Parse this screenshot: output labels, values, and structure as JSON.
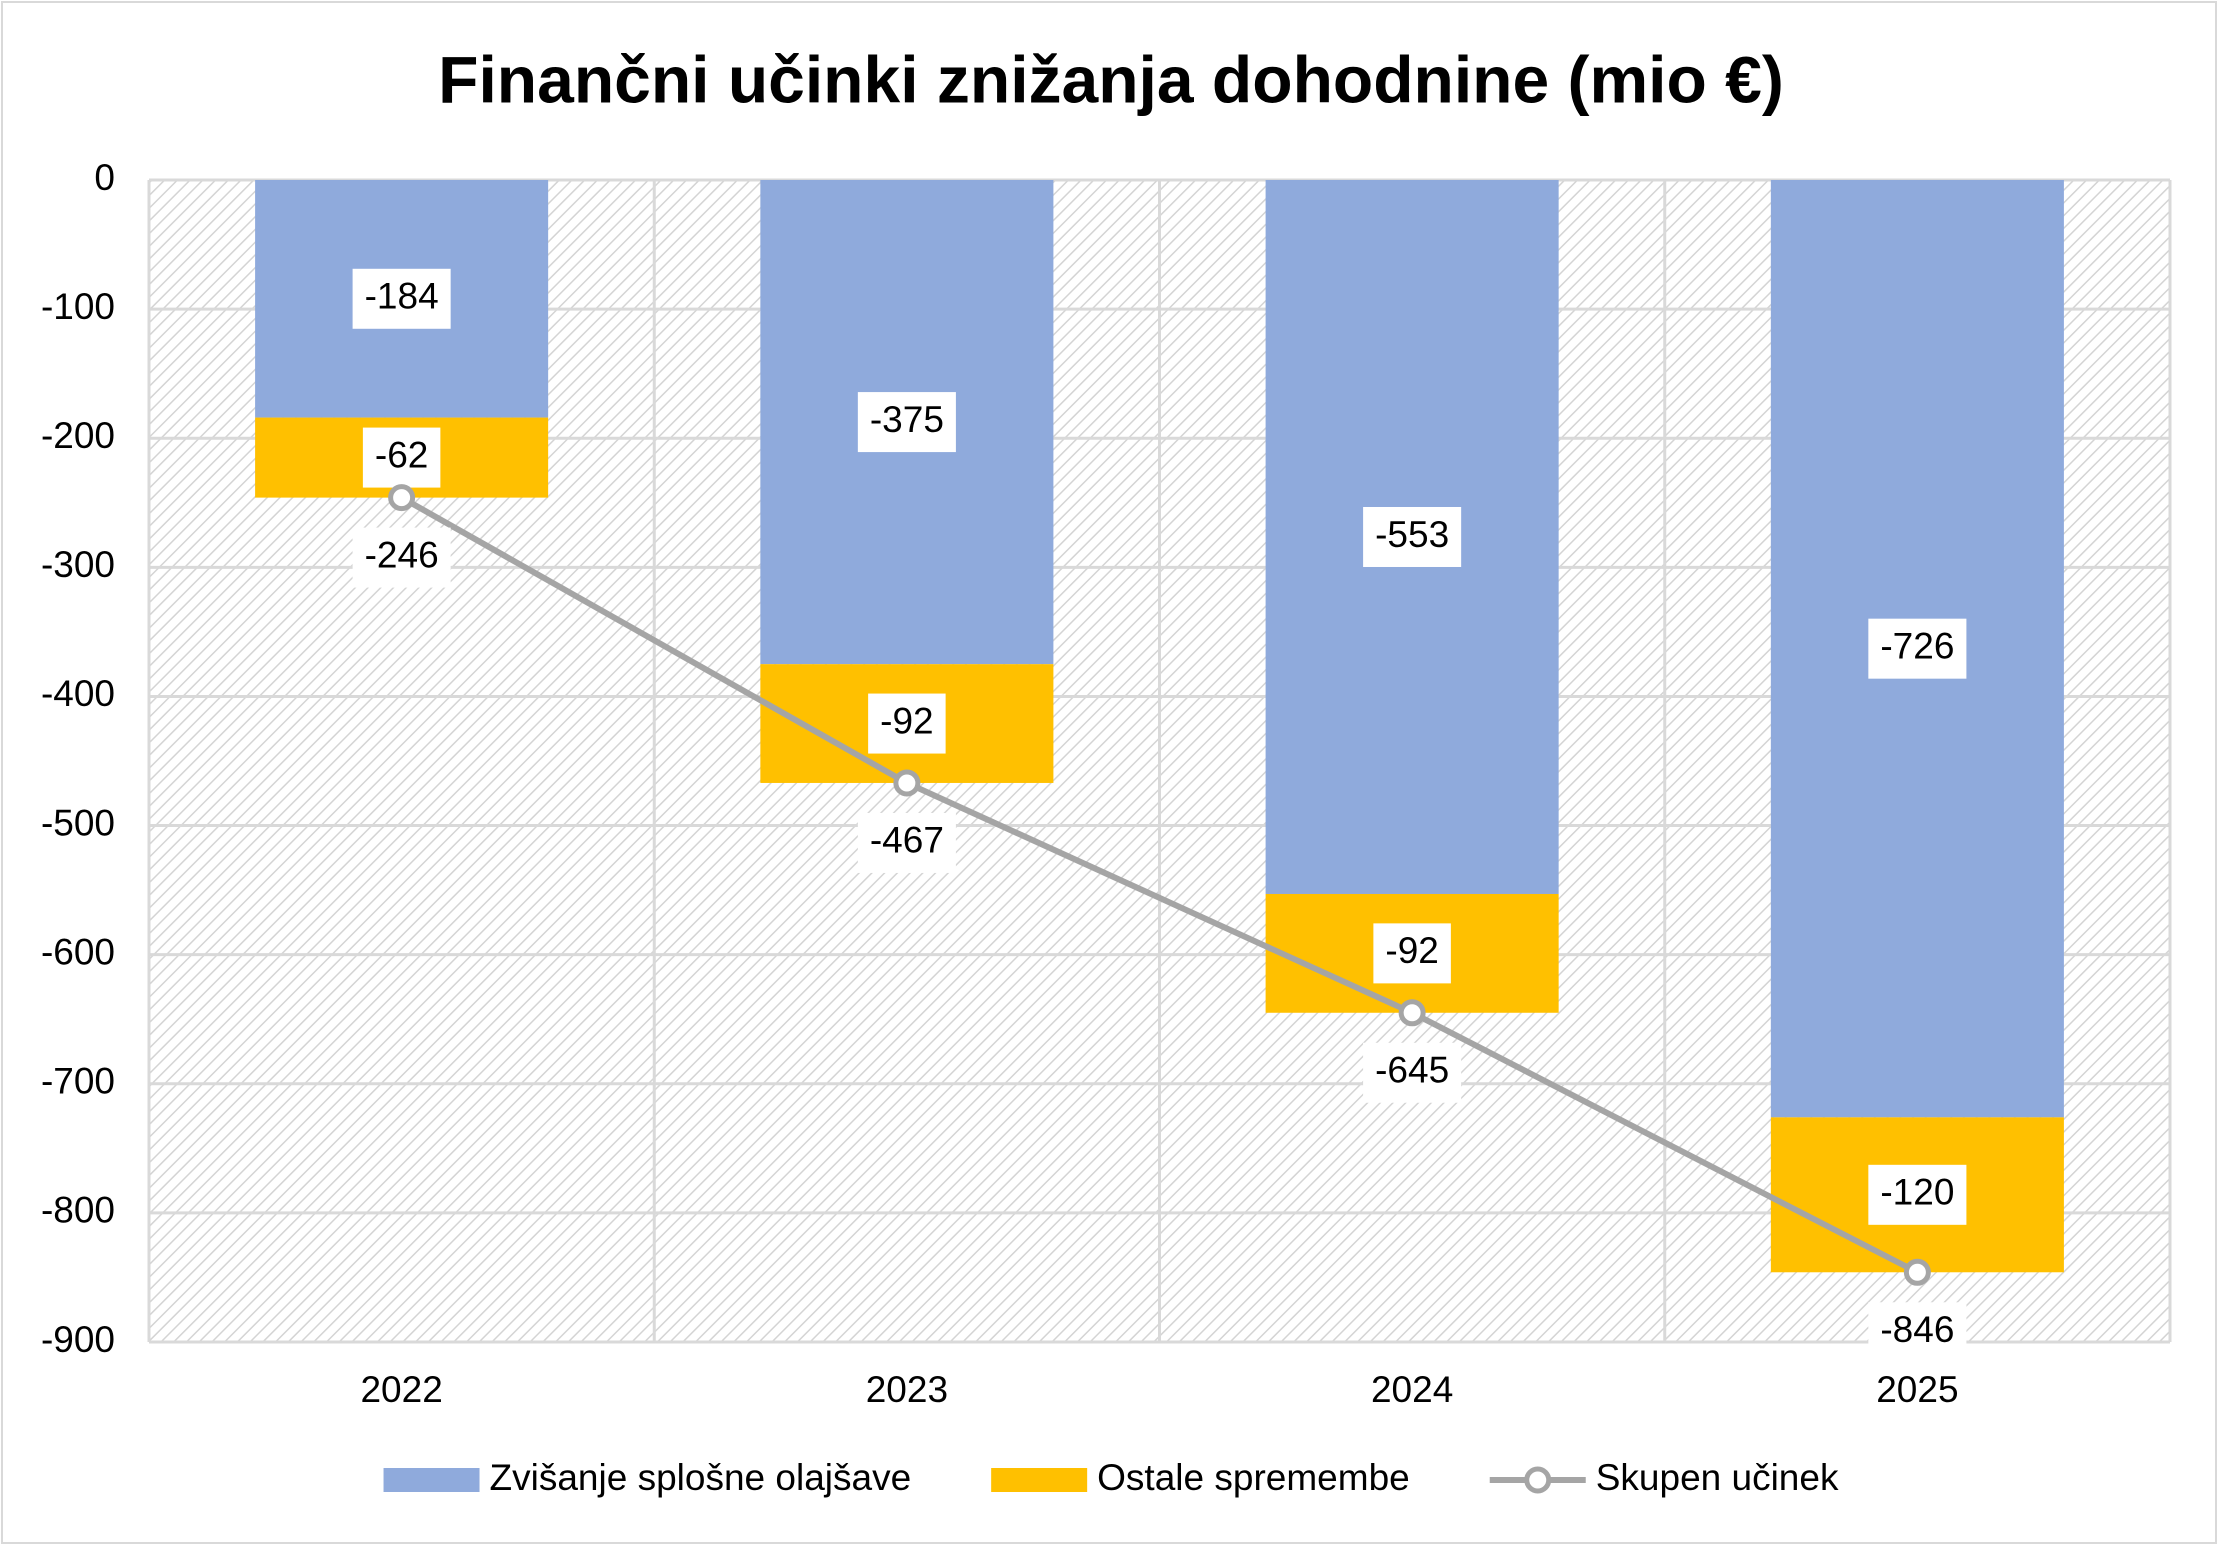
{
  "chart_data": {
    "type": "bar",
    "stacked": true,
    "title": "Finančni učinki znižanja dohodnine (mio €)",
    "categories": [
      "2022",
      "2023",
      "2024",
      "2025"
    ],
    "series": [
      {
        "name": "Zvišanje splošne olajšave",
        "color": "#8faadc",
        "values": [
          -184,
          -375,
          -553,
          -726
        ]
      },
      {
        "name": "Ostale spremembe",
        "color": "#ffc000",
        "values": [
          -62,
          -92,
          -92,
          -120
        ]
      },
      {
        "name": "Skupen učinek",
        "type": "line",
        "color": "#a5a5a5",
        "values": [
          -246,
          -467,
          -645,
          -846
        ]
      }
    ],
    "ylim": [
      -900,
      0
    ],
    "yticks": [
      0,
      -100,
      -200,
      -300,
      -400,
      -500,
      -600,
      -700,
      -800,
      -900
    ],
    "grid": true,
    "legend": "bottom"
  }
}
